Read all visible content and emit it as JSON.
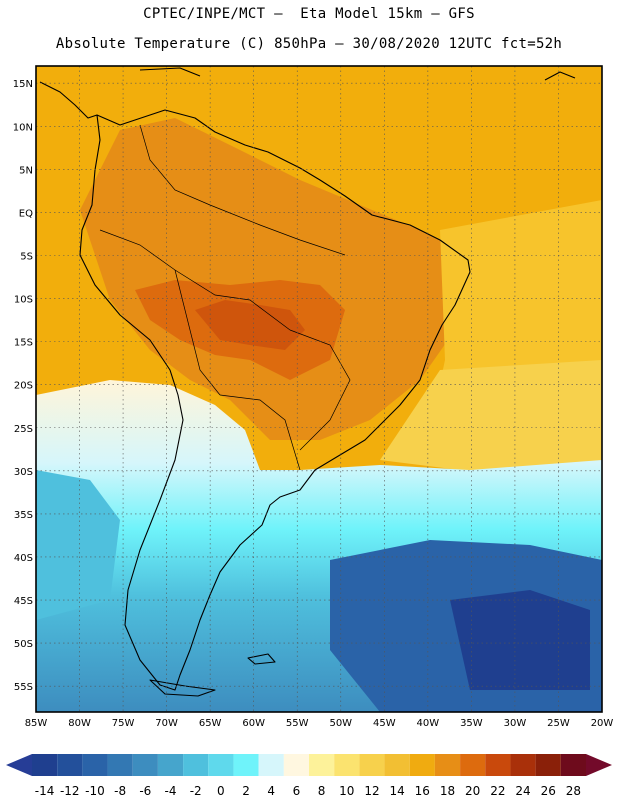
{
  "header": {
    "line1": "CPTEC/INPE/MCT –  Eta Model 15km – GFS",
    "line2": "Absolute Temperature (C) 850hPa – 30/08/2020 12UTC fct=52h"
  },
  "map": {
    "lat_labels": [
      "15N",
      "10N",
      "5N",
      "EQ",
      "5S",
      "10S",
      "15S",
      "20S",
      "25S",
      "30S",
      "35S",
      "40S",
      "45S",
      "50S",
      "55S"
    ],
    "lon_labels": [
      "85W",
      "80W",
      "75W",
      "70W",
      "65W",
      "60W",
      "55W",
      "50W",
      "45W",
      "40W",
      "35W",
      "30W",
      "25W",
      "20W"
    ],
    "lon_range": [
      -85,
      -20
    ],
    "lat_range": [
      -58,
      17
    ],
    "background_color": "#f2ae0c",
    "coast_color": "#000000"
  },
  "colorbar": {
    "labels": [
      "-14",
      "-12",
      "-10",
      "-8",
      "-6",
      "-4",
      "-2",
      "0",
      "2",
      "4",
      "6",
      "8",
      "10",
      "12",
      "14",
      "16",
      "18",
      "20",
      "22",
      "24",
      "26",
      "28"
    ],
    "colors": [
      "#1f3f8f",
      "#23509b",
      "#2a63a8",
      "#3378b3",
      "#3d8dbf",
      "#46a5cc",
      "#4fc0dd",
      "#5fd9ec",
      "#6ff3fa",
      "#d6f6fb",
      "#fff7e0",
      "#fdf29a",
      "#fbe36f",
      "#f7d14c",
      "#f2bf33",
      "#f0ab10",
      "#e78e16",
      "#dd6b0e",
      "#c9490c",
      "#a9300a",
      "#8a2009",
      "#6e0b1c"
    ],
    "min_arrow_color": "#263d96",
    "max_arrow_color": "#730a2a"
  }
}
